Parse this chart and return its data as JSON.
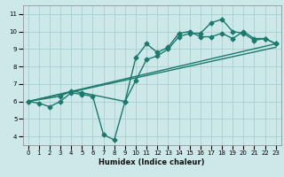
{
  "title": "",
  "xlabel": "Humidex (Indice chaleur)",
  "ylabel": "",
  "bg_color": "#cce8e8",
  "grid_color": "#aacfcf",
  "line_color": "#1a7a6e",
  "xlim": [
    -0.5,
    23.5
  ],
  "ylim": [
    3.5,
    11.5
  ],
  "xticks": [
    0,
    1,
    2,
    3,
    4,
    5,
    6,
    7,
    8,
    9,
    10,
    11,
    12,
    13,
    14,
    15,
    16,
    17,
    18,
    19,
    20,
    21,
    22,
    23
  ],
  "yticks": [
    4,
    5,
    6,
    7,
    8,
    9,
    10,
    11
  ],
  "line1": {
    "x": [
      0,
      1,
      2,
      3,
      4,
      5,
      6,
      7,
      8,
      9,
      10,
      11,
      12,
      13,
      14,
      15,
      16,
      17,
      18,
      19,
      20,
      21,
      22,
      23
    ],
    "y": [
      6.0,
      5.9,
      5.7,
      6.0,
      6.5,
      6.4,
      6.3,
      4.1,
      3.8,
      6.0,
      8.5,
      9.3,
      8.8,
      9.1,
      9.9,
      10.0,
      9.7,
      9.7,
      9.9,
      9.6,
      10.0,
      9.6,
      9.6,
      9.3
    ]
  },
  "line2": {
    "x": [
      0,
      3,
      4,
      5,
      9,
      10,
      11,
      12,
      13,
      14,
      15,
      16,
      17,
      18,
      19,
      20,
      21,
      22,
      23
    ],
    "y": [
      6.0,
      6.3,
      6.6,
      6.5,
      6.0,
      7.2,
      8.4,
      8.6,
      9.0,
      9.7,
      9.9,
      9.9,
      10.5,
      10.7,
      10.0,
      9.9,
      9.5,
      9.6,
      9.3
    ]
  },
  "line3": {
    "x": [
      0,
      23
    ],
    "y": [
      6.0,
      9.3
    ]
  },
  "line4": {
    "x": [
      0,
      23
    ],
    "y": [
      6.0,
      9.1
    ]
  },
  "marker_size": 2.5,
  "linewidth": 1.0,
  "tick_fontsize": 5.0,
  "xlabel_fontsize": 6.0
}
